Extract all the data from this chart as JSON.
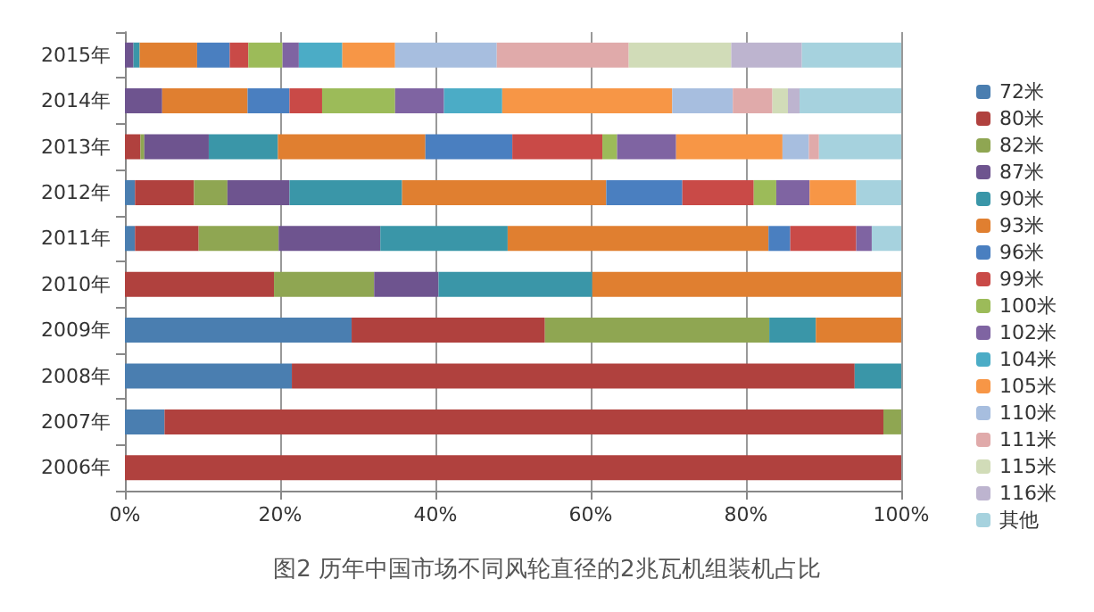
{
  "chart_data": {
    "type": "bar",
    "orientation": "horizontal",
    "stacked": true,
    "title": "图2 历年中国市场不同风轮直径的2兆瓦机组装机占比",
    "categories": [
      "2015年",
      "2014年",
      "2013年",
      "2012年",
      "2011年",
      "2010年",
      "2009年",
      "2008年",
      "2007年",
      "2006年"
    ],
    "xlim": [
      0,
      100
    ],
    "xticks": [
      {
        "value": 0,
        "label": "0%"
      },
      {
        "value": 20,
        "label": "20%"
      },
      {
        "value": 40,
        "label": "40%"
      },
      {
        "value": 60,
        "label": "60%"
      },
      {
        "value": 80,
        "label": "80%"
      },
      {
        "value": 100,
        "label": "100%"
      }
    ],
    "grid": "x",
    "legend": "right",
    "series": [
      {
        "name": "72米",
        "color": "#4a7eb0",
        "values": [
          null,
          null,
          null,
          1.3,
          1.3,
          null,
          29.2,
          21.5,
          5.1,
          null
        ]
      },
      {
        "name": "80米",
        "color": "#b0413e",
        "values": [
          null,
          null,
          2.0,
          7.6,
          8.2,
          19.2,
          24.9,
          72.5,
          92.6,
          100
        ]
      },
      {
        "name": "82米",
        "color": "#8fa652",
        "values": [
          null,
          null,
          0.5,
          4.3,
          10.3,
          12.9,
          28.9,
          null,
          2.3,
          null
        ]
      },
      {
        "name": "87米",
        "color": "#6e548f",
        "values": [
          1.1,
          4.8,
          8.3,
          8.0,
          13.1,
          8.3,
          null,
          null,
          null,
          null
        ]
      },
      {
        "name": "90米",
        "color": "#3a96a8",
        "values": [
          0.8,
          null,
          8.9,
          14.5,
          16.4,
          19.8,
          6.0,
          6.0,
          null,
          null
        ]
      },
      {
        "name": "93米",
        "color": "#e07f30",
        "values": [
          7.4,
          11.0,
          19.0,
          26.3,
          33.6,
          39.8,
          11.0,
          null,
          null,
          null
        ]
      },
      {
        "name": "96米",
        "color": "#4a7fc0",
        "values": [
          4.2,
          5.4,
          11.2,
          9.8,
          2.8,
          null,
          null,
          null,
          null,
          null
        ]
      },
      {
        "name": "99米",
        "color": "#c94a47",
        "values": [
          2.4,
          4.2,
          11.6,
          9.2,
          8.5,
          null,
          null,
          null,
          null,
          null
        ]
      },
      {
        "name": "100米",
        "color": "#9cbb59",
        "values": [
          4.4,
          9.4,
          1.9,
          2.9,
          null,
          null,
          null,
          null,
          null,
          null
        ]
      },
      {
        "name": "102米",
        "color": "#7f64a2",
        "values": [
          2.1,
          6.3,
          7.6,
          4.3,
          2.0,
          null,
          null,
          null,
          null,
          null
        ]
      },
      {
        "name": "104米",
        "color": "#4bacc6",
        "values": [
          5.6,
          7.5,
          null,
          null,
          null,
          null,
          null,
          null,
          null,
          null
        ]
      },
      {
        "name": "105米",
        "color": "#f79646",
        "values": [
          6.8,
          21.9,
          13.7,
          6.0,
          null,
          null,
          null,
          null,
          null,
          null
        ]
      },
      {
        "name": "110米",
        "color": "#a7bedf",
        "values": [
          13.1,
          7.8,
          3.4,
          null,
          null,
          null,
          null,
          null,
          null,
          null
        ]
      },
      {
        "name": "111米",
        "color": "#e0aaaa",
        "values": [
          17.0,
          5.1,
          1.3,
          null,
          null,
          null,
          null,
          null,
          null,
          null
        ]
      },
      {
        "name": "115米",
        "color": "#d1dcb8",
        "values": [
          13.2,
          2.0,
          null,
          null,
          null,
          null,
          null,
          null,
          null,
          null
        ]
      },
      {
        "name": "116米",
        "color": "#bdb4cf",
        "values": [
          9.1,
          1.5,
          null,
          null,
          null,
          null,
          null,
          null,
          null,
          null
        ]
      },
      {
        "name": "其他",
        "color": "#a6d2de",
        "values": [
          12.8,
          13.1,
          10.6,
          5.8,
          3.8,
          null,
          null,
          null,
          null,
          null
        ]
      }
    ]
  }
}
